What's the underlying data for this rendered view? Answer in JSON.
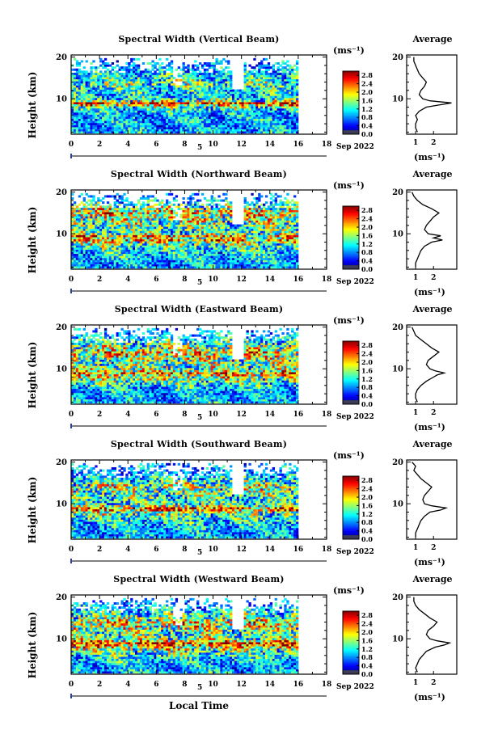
{
  "figure": {
    "xlabel": "Local Time",
    "ylabel": "Height (km)",
    "unit_label": "(ms⁻¹)",
    "avg_title": "Average",
    "date_label": "Sep 2022",
    "day_marker": "5"
  },
  "chart_data": [
    {
      "type": "heatmap",
      "title": "Spectral Width (Vertical Beam)",
      "xlabel": "Local Time",
      "ylabel": "Height (km)",
      "x_ticks": [
        0,
        2,
        4,
        6,
        8,
        10,
        12,
        14,
        16,
        18
      ],
      "xlim": [
        0,
        18
      ],
      "y_ticks": [
        10,
        20
      ],
      "ylim": [
        1.5,
        20.5
      ],
      "data_xrange": [
        0,
        16
      ],
      "colorbar": {
        "label": "(ms⁻¹)",
        "ticks": [
          0.0,
          0.4,
          0.8,
          1.2,
          1.6,
          2.0,
          2.4,
          2.8
        ],
        "range": [
          0,
          3
        ]
      },
      "average_profile": {
        "title": "Average",
        "xlabel": "(ms⁻¹)",
        "x_ticks": [
          1,
          2
        ],
        "xlim": [
          0.5,
          3.3
        ],
        "height_km": [
          2,
          3,
          4,
          5,
          6,
          7,
          8,
          8.5,
          9,
          9.5,
          10,
          11,
          12,
          13,
          14,
          15,
          16,
          17,
          18,
          19,
          20
        ],
        "width": [
          1.1,
          1.0,
          1.0,
          1.1,
          1.0,
          1.2,
          1.6,
          2.3,
          3.0,
          1.8,
          1.4,
          1.2,
          1.3,
          1.5,
          1.6,
          1.4,
          1.2,
          1.1,
          1.0,
          0.9,
          0.9
        ]
      }
    },
    {
      "type": "heatmap",
      "title": "Spectral Width (Northward Beam)",
      "xlabel": "Local Time",
      "ylabel": "Height (km)",
      "x_ticks": [
        0,
        2,
        4,
        6,
        8,
        10,
        12,
        14,
        16,
        18
      ],
      "xlim": [
        0,
        18
      ],
      "y_ticks": [
        10,
        20
      ],
      "ylim": [
        1.5,
        20.5
      ],
      "data_xrange": [
        0,
        16
      ],
      "colorbar": {
        "label": "(ms⁻¹)",
        "ticks": [
          0.0,
          0.4,
          0.8,
          1.2,
          1.6,
          2.0,
          2.4,
          2.8
        ],
        "range": [
          0,
          3
        ]
      },
      "average_profile": {
        "title": "Average",
        "xlabel": "(ms⁻¹)",
        "x_ticks": [
          1,
          2
        ],
        "xlim": [
          0.5,
          3.3
        ],
        "height_km": [
          2,
          3,
          4,
          5,
          6,
          7,
          8,
          8.5,
          9,
          9.5,
          10,
          11,
          12,
          13,
          14,
          15,
          16,
          17,
          18,
          19,
          20
        ],
        "width": [
          1.0,
          1.0,
          1.1,
          1.2,
          1.3,
          1.5,
          1.9,
          2.5,
          2.0,
          2.4,
          1.7,
          1.5,
          1.6,
          1.8,
          2.0,
          2.3,
          1.9,
          1.4,
          1.1,
          0.9,
          0.8
        ]
      }
    },
    {
      "type": "heatmap",
      "title": "Spectral Width (Eastward Beam)",
      "xlabel": "Local Time",
      "ylabel": "Height (km)",
      "x_ticks": [
        0,
        2,
        4,
        6,
        8,
        10,
        12,
        14,
        16,
        18
      ],
      "xlim": [
        0,
        18
      ],
      "y_ticks": [
        10,
        20
      ],
      "ylim": [
        1.5,
        20.5
      ],
      "data_xrange": [
        0,
        16
      ],
      "colorbar": {
        "label": "(ms⁻¹)",
        "ticks": [
          0.0,
          0.4,
          0.8,
          1.2,
          1.6,
          2.0,
          2.4,
          2.8
        ],
        "range": [
          0,
          3
        ]
      },
      "average_profile": {
        "title": "Average",
        "xlabel": "(ms⁻¹)",
        "x_ticks": [
          1,
          2
        ],
        "xlim": [
          0.5,
          3.3
        ],
        "height_km": [
          2,
          3,
          4,
          5,
          6,
          7,
          8,
          8.5,
          9,
          9.5,
          10,
          11,
          12,
          13,
          14,
          15,
          16,
          17,
          18,
          19,
          20
        ],
        "width": [
          1.1,
          1.0,
          1.0,
          1.1,
          1.3,
          1.6,
          2.0,
          2.2,
          2.6,
          2.1,
          1.8,
          1.6,
          1.7,
          2.0,
          2.3,
          1.9,
          1.6,
          1.3,
          1.0,
          0.9,
          0.8
        ]
      }
    },
    {
      "type": "heatmap",
      "title": "Spectral Width (Southward Beam)",
      "xlabel": "Local Time",
      "ylabel": "Height (km)",
      "x_ticks": [
        0,
        2,
        4,
        6,
        8,
        10,
        12,
        14,
        16,
        18
      ],
      "xlim": [
        0,
        18
      ],
      "y_ticks": [
        10,
        20
      ],
      "ylim": [
        1.5,
        20.5
      ],
      "data_xrange": [
        0,
        16
      ],
      "colorbar": {
        "label": "(ms⁻¹)",
        "ticks": [
          0.0,
          0.4,
          0.8,
          1.2,
          1.6,
          2.0,
          2.4,
          2.8
        ],
        "range": [
          0,
          3
        ]
      },
      "average_profile": {
        "title": "Average",
        "xlabel": "(ms⁻¹)",
        "x_ticks": [
          1,
          2
        ],
        "xlim": [
          0.5,
          3.3
        ],
        "height_km": [
          2,
          3,
          4,
          5,
          6,
          7,
          8,
          8.5,
          9,
          9.5,
          10,
          11,
          12,
          13,
          14,
          15,
          16,
          17,
          18,
          19,
          20
        ],
        "width": [
          1.0,
          1.0,
          1.1,
          1.2,
          1.3,
          1.5,
          1.8,
          2.4,
          2.7,
          1.9,
          1.5,
          1.4,
          1.5,
          1.7,
          1.9,
          1.6,
          1.3,
          1.1,
          0.9,
          1.0,
          0.8
        ]
      }
    },
    {
      "type": "heatmap",
      "title": "Spectral Width (Westward Beam)",
      "xlabel": "Local Time",
      "ylabel": "Height (km)",
      "x_ticks": [
        0,
        2,
        4,
        6,
        8,
        10,
        12,
        14,
        16,
        18
      ],
      "xlim": [
        0,
        18
      ],
      "y_ticks": [
        10,
        20
      ],
      "ylim": [
        1.5,
        20.5
      ],
      "data_xrange": [
        0,
        16
      ],
      "colorbar": {
        "label": "(ms⁻¹)",
        "ticks": [
          0.0,
          0.4,
          0.8,
          1.2,
          1.6,
          2.0,
          2.4,
          2.8
        ],
        "range": [
          0,
          3
        ]
      },
      "average_profile": {
        "title": "Average",
        "xlabel": "(ms⁻¹)",
        "x_ticks": [
          1,
          2
        ],
        "xlim": [
          0.5,
          3.3
        ],
        "height_km": [
          2,
          3,
          4,
          5,
          6,
          7,
          8,
          8.5,
          9,
          9.5,
          10,
          11,
          12,
          13,
          14,
          15,
          16,
          17,
          18,
          19,
          20
        ],
        "width": [
          1.1,
          1.0,
          1.1,
          1.2,
          1.4,
          1.6,
          2.1,
          2.6,
          2.9,
          2.2,
          1.8,
          1.6,
          1.7,
          2.0,
          2.2,
          1.8,
          1.5,
          1.2,
          1.0,
          0.9,
          0.9
        ]
      }
    }
  ]
}
